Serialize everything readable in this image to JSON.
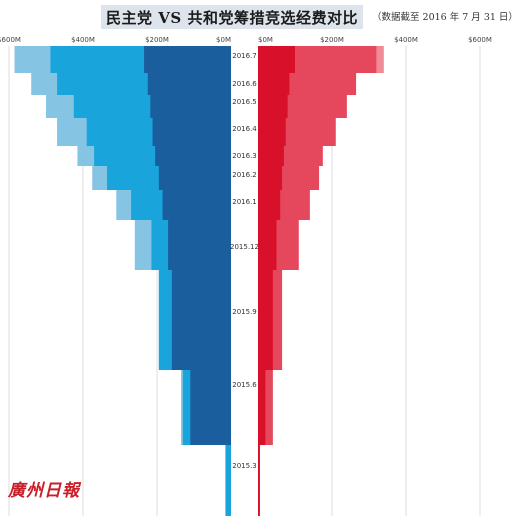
{
  "title": "民主党 VS 共和党筹措竞选经费对比",
  "note": "（数据截至 2016 年 7 月 31 日）",
  "watermark": "廣州日報",
  "chart_data": {
    "type": "bar",
    "title": "民主党 VS 共和党筹措竞选经费对比",
    "note": "数据截至 2016 年 7 月 31 日",
    "axis_ticks_left": [
      "$600M",
      "$400M",
      "$200M",
      "$0M"
    ],
    "axis_ticks_right": [
      "$0M",
      "$200M",
      "$400M",
      "$600M"
    ],
    "xlim": [
      0,
      600
    ],
    "unit": "$M",
    "date_labels": [
      "2016.7",
      "2016.6",
      "2016.5",
      "2016.4",
      "2016.3",
      "2016.2",
      "2016.1",
      "2015.12",
      "2015.9",
      "2015.6",
      "2015.3"
    ],
    "colors": {
      "dem_dark": "#1a5e9e",
      "dem_mid": "#1aa4dc",
      "dem_light": "#86c4e4",
      "rep_dark": "#d8102a",
      "rep_mid": "#e5485c",
      "rep_light": "#ef8a96"
    },
    "democrats": {
      "rows": [
        {
          "month": "2016.7",
          "dark": 235,
          "mid": 488,
          "light": 585
        },
        {
          "month": "2016.6",
          "dark": 225,
          "mid": 470,
          "light": 540
        },
        {
          "month": "2016.5",
          "dark": 218,
          "mid": 425,
          "light": 500
        },
        {
          "month": "2016.4",
          "dark": 212,
          "mid": 390,
          "light": 470
        },
        {
          "month": "2016.3",
          "dark": 205,
          "mid": 370,
          "light": 415
        },
        {
          "month": "2016.2",
          "dark": 195,
          "mid": 335,
          "light": 375
        },
        {
          "month": "2016.1",
          "dark": 185,
          "mid": 270,
          "light": 310
        },
        {
          "month": "2015.12",
          "dark": 170,
          "mid": 215,
          "light": 260
        },
        {
          "month": "2015.9",
          "dark": 160,
          "mid": 195,
          "light": 195
        },
        {
          "month": "2015.6",
          "dark": 110,
          "mid": 130,
          "light": 135
        },
        {
          "month": "2015.3",
          "dark": 0,
          "mid": 15,
          "light": 15
        }
      ]
    },
    "republicans": {
      "rows": [
        {
          "month": "2016.7",
          "dark": 100,
          "mid": 320,
          "light": 340
        },
        {
          "month": "2016.6",
          "dark": 85,
          "mid": 265,
          "light": 265
        },
        {
          "month": "2016.5",
          "dark": 80,
          "mid": 240,
          "light": 240
        },
        {
          "month": "2016.4",
          "dark": 75,
          "mid": 210,
          "light": 210
        },
        {
          "month": "2016.3",
          "dark": 70,
          "mid": 175,
          "light": 175
        },
        {
          "month": "2016.2",
          "dark": 65,
          "mid": 165,
          "light": 165
        },
        {
          "month": "2016.1",
          "dark": 60,
          "mid": 140,
          "light": 140
        },
        {
          "month": "2015.12",
          "dark": 50,
          "mid": 110,
          "light": 110
        },
        {
          "month": "2015.9",
          "dark": 40,
          "mid": 65,
          "light": 65
        },
        {
          "month": "2015.6",
          "dark": 20,
          "mid": 40,
          "light": 40
        },
        {
          "month": "2015.3",
          "dark": 5,
          "mid": 5,
          "light": 5
        }
      ]
    }
  }
}
